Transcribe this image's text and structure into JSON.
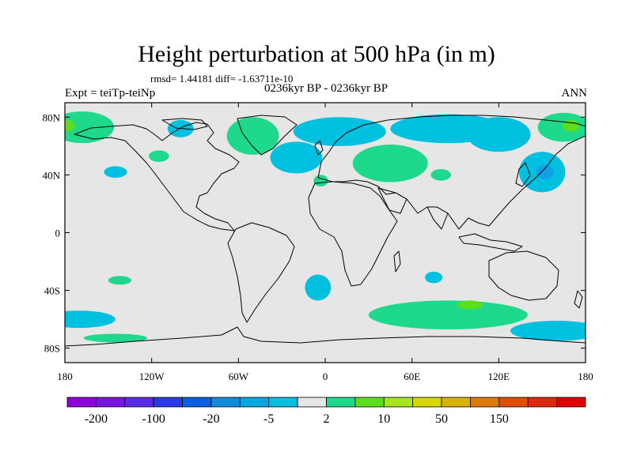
{
  "title": "Height perturbation at 500 hPa (in m)",
  "stats": "rmsd= 1.44181 diff= -1.63711e-10",
  "period": "0236kyr BP - 0236kyr BP",
  "experiment": "Expt = teiTp-teiNp",
  "season": "ANN",
  "map": {
    "lon_range": [
      -180,
      180
    ],
    "lat_range": [
      -90,
      90
    ],
    "background_color": "#e6e6e6",
    "x_ticks": [
      {
        "lon": -180,
        "label": "180"
      },
      {
        "lon": -120,
        "label": "120W"
      },
      {
        "lon": -60,
        "label": "60W"
      },
      {
        "lon": 0,
        "label": "0"
      },
      {
        "lon": 60,
        "label": "60E"
      },
      {
        "lon": 120,
        "label": "120E"
      },
      {
        "lon": 180,
        "label": "180"
      }
    ],
    "y_ticks": [
      {
        "lat": 80,
        "label": "80N"
      },
      {
        "lat": 40,
        "label": "40N"
      },
      {
        "lat": 0,
        "label": "0"
      },
      {
        "lat": -40,
        "label": "40S"
      },
      {
        "lat": -80,
        "label": "80S"
      }
    ],
    "anomalies": [
      {
        "id": "pos-npac-west",
        "lon": -168,
        "lat": 73,
        "rlon": 22,
        "rlat": 11,
        "color": "#1ed98c"
      },
      {
        "id": "pos-npac-west-core",
        "lon": -178,
        "lat": 74,
        "rlon": 5,
        "rlat": 4,
        "color": "#5ade1e"
      },
      {
        "id": "pos-nw-canada",
        "lon": -115,
        "lat": 53,
        "rlon": 7,
        "rlat": 4,
        "color": "#1ed98c"
      },
      {
        "id": "neg-arctic-canada",
        "lon": -100,
        "lat": 72,
        "rlon": 9,
        "rlat": 6,
        "color": "#00c0e0"
      },
      {
        "id": "pos-greenland",
        "lon": -50,
        "lat": 67,
        "rlon": 18,
        "rlat": 13,
        "color": "#1ed98c"
      },
      {
        "id": "neg-pac-east",
        "lon": -145,
        "lat": 42,
        "rlon": 8,
        "rlat": 4,
        "color": "#00c0e0"
      },
      {
        "id": "neg-atlantic-arc",
        "lon": -20,
        "lat": 52,
        "rlon": 18,
        "rlat": 11,
        "color": "#00c0e0"
      },
      {
        "id": "neg-atlantic-arc-north",
        "lon": 10,
        "lat": 70,
        "rlon": 32,
        "rlat": 10,
        "color": "#00c0e0"
      },
      {
        "id": "neg-siberia",
        "lon": 85,
        "lat": 72,
        "rlon": 40,
        "rlat": 10,
        "color": "#00c0e0"
      },
      {
        "id": "neg-siberia-east",
        "lon": 120,
        "lat": 68,
        "rlon": 22,
        "rlat": 12,
        "color": "#00c0e0"
      },
      {
        "id": "pos-europe",
        "lon": 45,
        "lat": 48,
        "rlon": 26,
        "rlat": 13,
        "color": "#1ed98c"
      },
      {
        "id": "pos-iberia",
        "lon": -3,
        "lat": 36,
        "rlon": 5,
        "rlat": 4,
        "color": "#1ed98c"
      },
      {
        "id": "pos-central-asia",
        "lon": 80,
        "lat": 40,
        "rlon": 7,
        "rlat": 4,
        "color": "#1ed98c"
      },
      {
        "id": "neg-east-asia",
        "lon": 150,
        "lat": 42,
        "rlon": 16,
        "rlat": 14,
        "color": "#00c0e0"
      },
      {
        "id": "neg-east-asia-core",
        "lon": 152,
        "lat": 42,
        "rlon": 6,
        "rlat": 5,
        "color": "#0fa0e6"
      },
      {
        "id": "pos-far-east",
        "lon": 165,
        "lat": 73,
        "rlon": 18,
        "rlat": 10,
        "color": "#1ed98c"
      },
      {
        "id": "pos-far-east-core",
        "lon": 170,
        "lat": 74,
        "rlon": 6,
        "rlat": 4,
        "color": "#5ade1e"
      },
      {
        "id": "pos-south-pacific",
        "lon": -142,
        "lat": -33,
        "rlon": 8,
        "rlat": 3,
        "color": "#1ed98c"
      },
      {
        "id": "neg-south-atlantic",
        "lon": -5,
        "lat": -38,
        "rlon": 9,
        "rlat": 9,
        "color": "#00c0e0"
      },
      {
        "id": "neg-indian",
        "lon": 75,
        "lat": -31,
        "rlon": 6,
        "rlat": 4,
        "color": "#00c0e0"
      },
      {
        "id": "pos-southern-ocean",
        "lon": 85,
        "lat": -57,
        "rlon": 55,
        "rlat": 10,
        "color": "#1ed98c"
      },
      {
        "id": "pos-southern-ocean-core",
        "lon": 100,
        "lat": -50,
        "rlon": 9,
        "rlat": 3,
        "color": "#5ade1e"
      },
      {
        "id": "neg-southern-ocean-east",
        "lon": 160,
        "lat": -68,
        "rlon": 32,
        "rlat": 7,
        "color": "#00c0e0"
      },
      {
        "id": "neg-southern-ocean-west",
        "lon": -170,
        "lat": -60,
        "rlon": 25,
        "rlat": 6,
        "color": "#00c0e0"
      },
      {
        "id": "pos-south-pacific-far",
        "lon": -145,
        "lat": -73,
        "rlon": 22,
        "rlat": 3,
        "color": "#1ed98c"
      }
    ]
  },
  "colorbar": {
    "colors": [
      "#8c00d9",
      "#7a15e0",
      "#5a2ae6",
      "#2a3ae6",
      "#0a60e0",
      "#0f8cdc",
      "#00a8e0",
      "#00c0e0",
      "#e6e6e6",
      "#1ed98c",
      "#5ade1e",
      "#a8e620",
      "#d8d800",
      "#d8b400",
      "#e07a00",
      "#e04e00",
      "#e0280e",
      "#e00000"
    ],
    "labels": [
      "-200",
      "-100",
      "-20",
      "-5",
      "2",
      "10",
      "50",
      "150"
    ]
  }
}
